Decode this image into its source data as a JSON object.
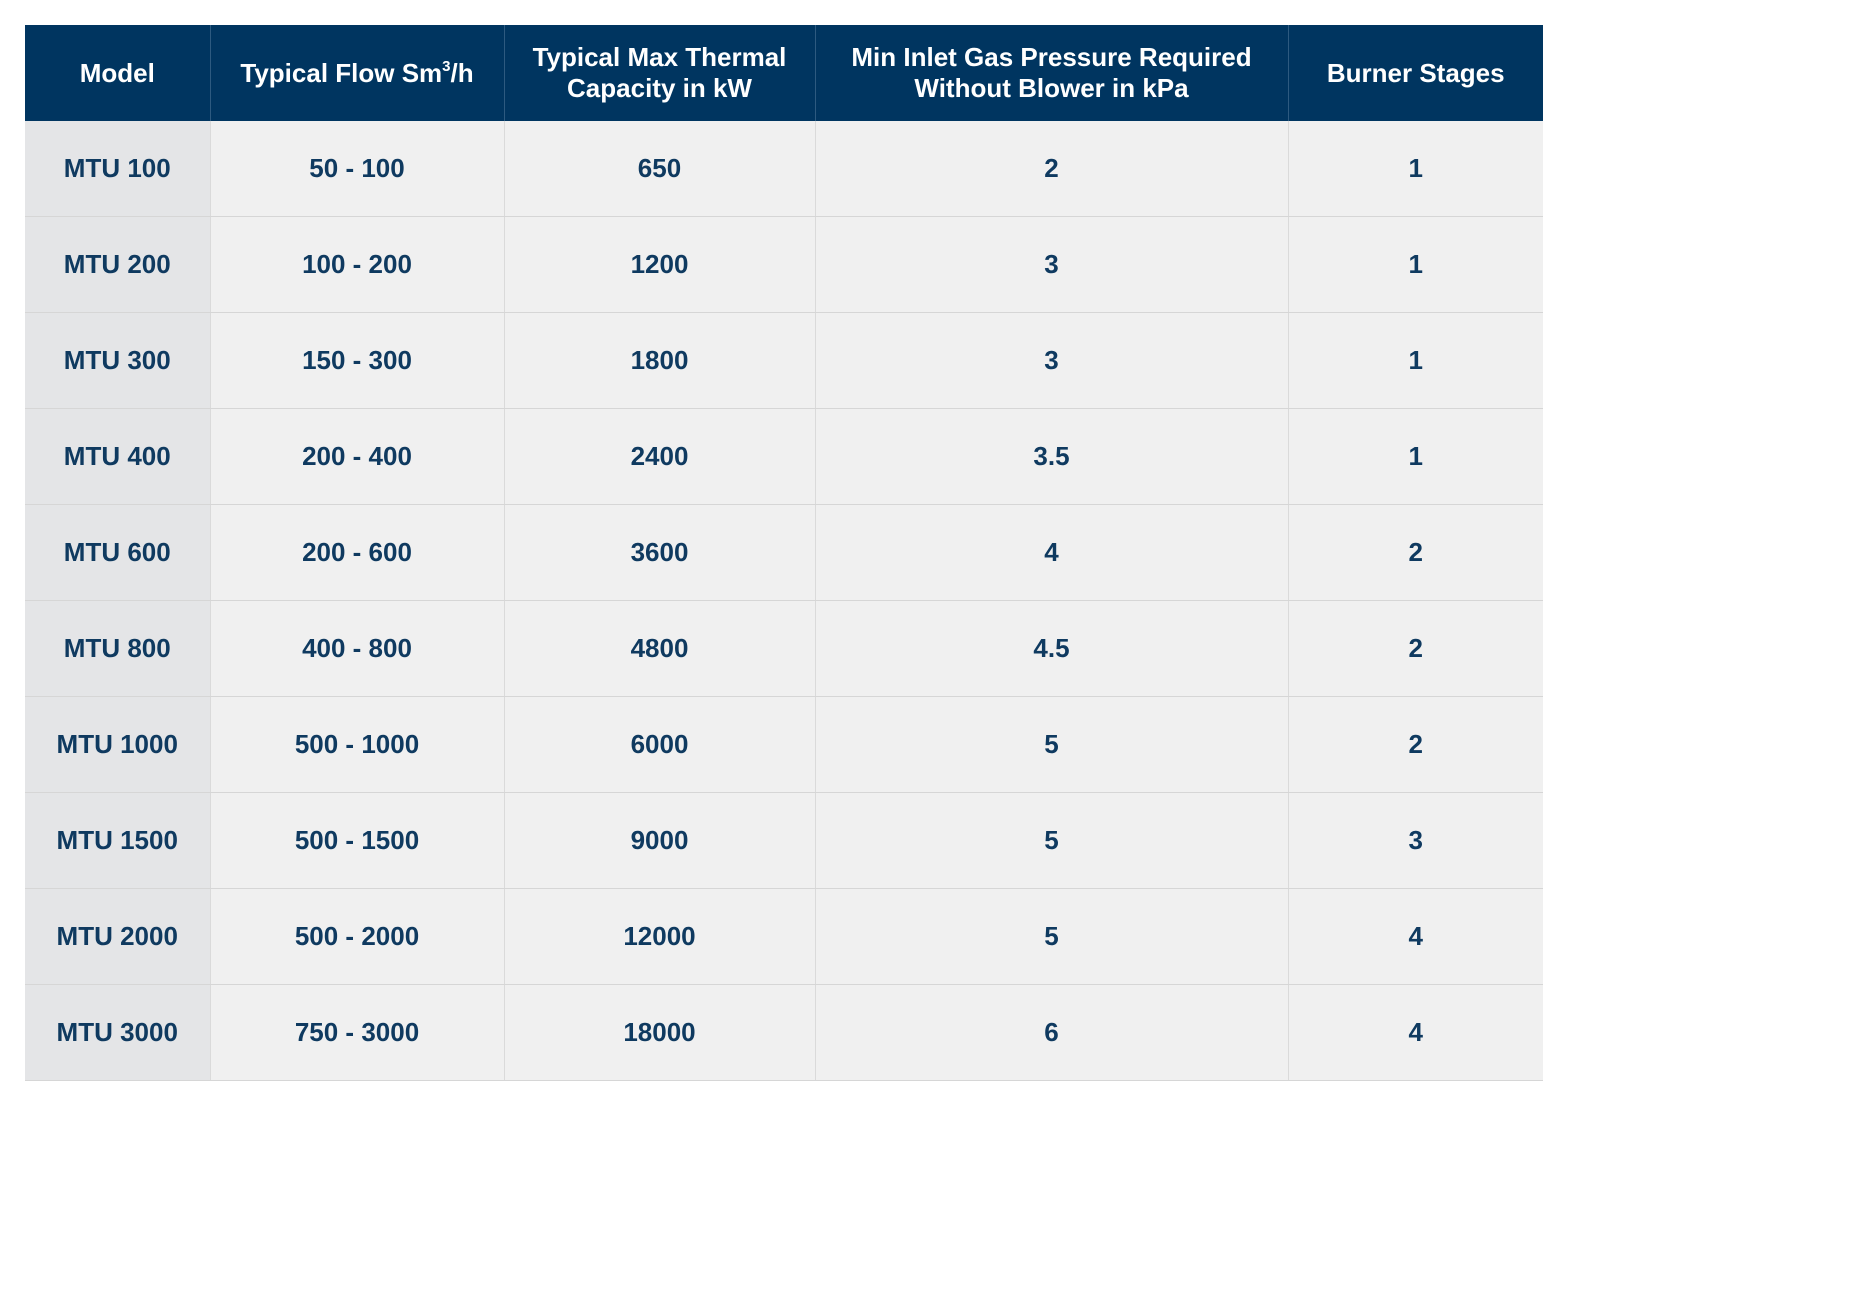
{
  "table": {
    "headers": {
      "model": "Model",
      "flow_prefix": "Typical Flow Sm",
      "flow_sup": "3",
      "flow_suffix": "/h",
      "capacity_line1": "Typical Max Thermal",
      "capacity_line2": "Capacity in kW",
      "pressure_line1": "Min Inlet Gas Pressure Required",
      "pressure_line2": "Without Blower in kPa",
      "stages": "Burner Stages"
    },
    "rows": [
      {
        "model": "MTU 100",
        "flow": "50 - 100",
        "capacity": "650",
        "pressure": "2",
        "stages": "1"
      },
      {
        "model": "MTU 200",
        "flow": "100 - 200",
        "capacity": "1200",
        "pressure": "3",
        "stages": "1"
      },
      {
        "model": "MTU 300",
        "flow": "150 - 300",
        "capacity": "1800",
        "pressure": "3",
        "stages": "1"
      },
      {
        "model": "MTU 400",
        "flow": "200 - 400",
        "capacity": "2400",
        "pressure": "3.5",
        "stages": "1"
      },
      {
        "model": "MTU 600",
        "flow": "200 - 600",
        "capacity": "3600",
        "pressure": "4",
        "stages": "2"
      },
      {
        "model": "MTU 800",
        "flow": "400 - 800",
        "capacity": "4800",
        "pressure": "4.5",
        "stages": "2"
      },
      {
        "model": "MTU 1000",
        "flow": "500 - 1000",
        "capacity": "6000",
        "pressure": "5",
        "stages": "2"
      },
      {
        "model": "MTU 1500",
        "flow": "500 - 1500",
        "capacity": "9000",
        "pressure": "5",
        "stages": "3"
      },
      {
        "model": "MTU 2000",
        "flow": "500 - 2000",
        "capacity": "12000",
        "pressure": "5",
        "stages": "4"
      },
      {
        "model": "MTU 3000",
        "flow": "750 - 3000",
        "capacity": "18000",
        "pressure": "6",
        "stages": "4"
      }
    ]
  },
  "colors": {
    "header_background": "#003560",
    "header_text": "#ffffff",
    "body_text": "#0f3a60",
    "cell_background": "#f0f0f0",
    "model_column_background": "#e4e5e7"
  }
}
